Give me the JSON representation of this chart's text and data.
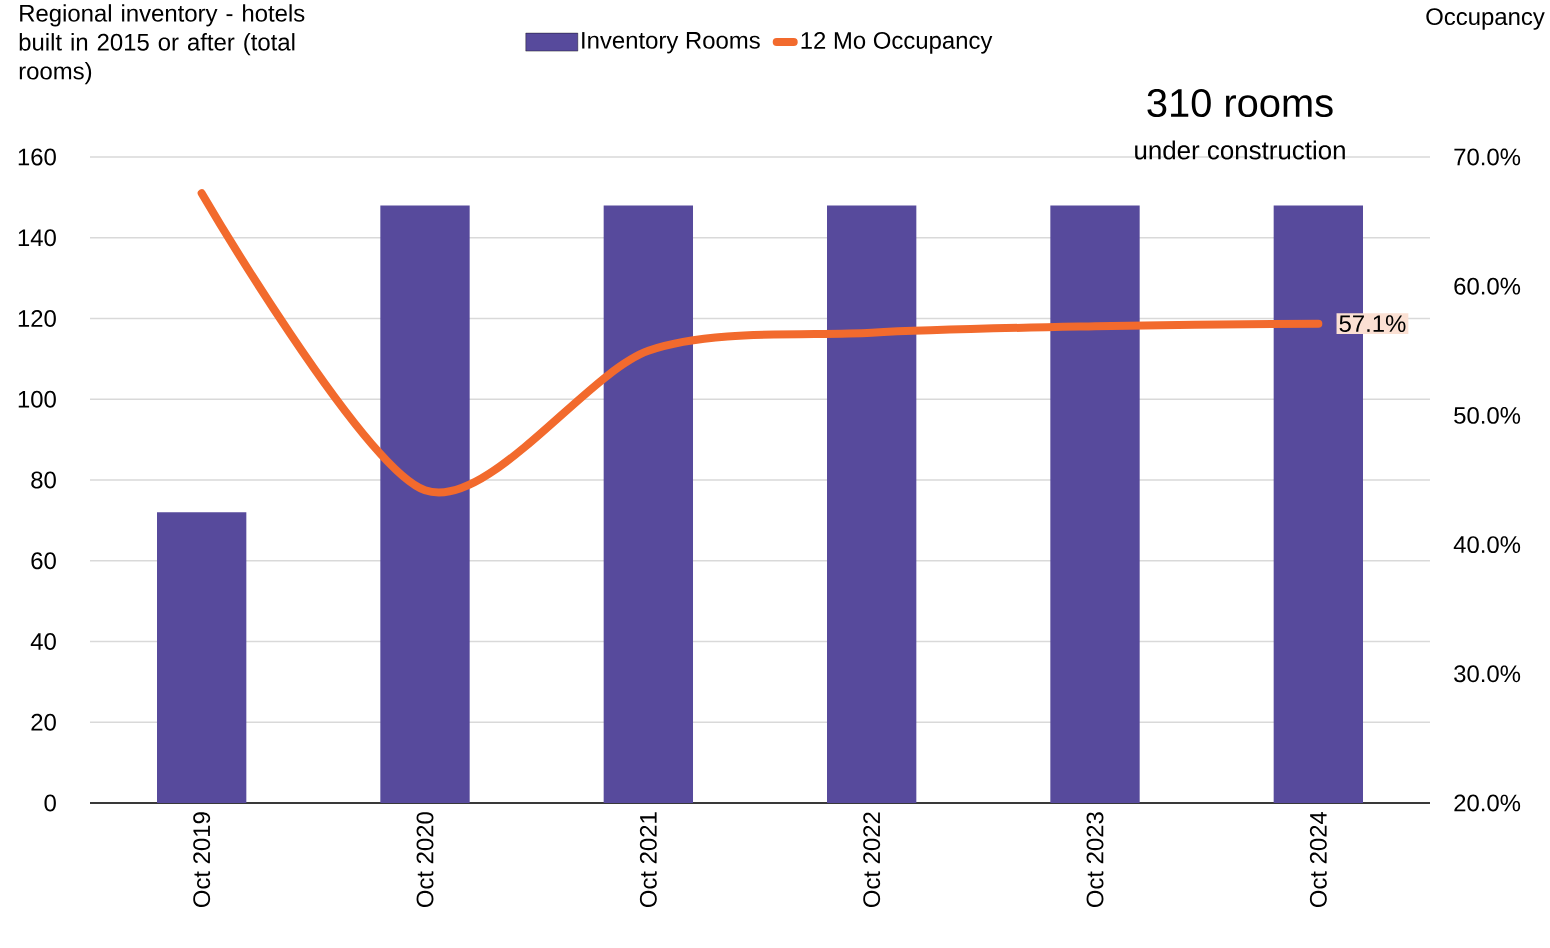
{
  "chart_data": {
    "type": "bar",
    "ylabel": "Regional inventory - hotels built in 2015 or after (total rooms)",
    "y2label": "Occupancy",
    "annotations": [
      "310 rooms",
      "under construction"
    ],
    "categories": [
      "Oct 2019",
      "Oct 2020",
      "Oct 2021",
      "Oct 2022",
      "Oct 2023",
      "Oct 2024"
    ],
    "series": [
      {
        "name": "Inventory Rooms",
        "color": "#574a9c",
        "values": [
          72,
          148,
          148,
          148,
          148,
          148
        ]
      },
      {
        "name": "12 Mo Occupancy",
        "type": "line",
        "axis": "y2",
        "color": "#f26a2d",
        "values": [
          67.2,
          44.2,
          55.0,
          56.4,
          56.9,
          57.1
        ],
        "value_labels": [
          null,
          null,
          null,
          null,
          null,
          "57.1%"
        ]
      }
    ],
    "ylim": [
      0,
      160
    ],
    "yticks": [
      0,
      20,
      40,
      60,
      80,
      100,
      120,
      140,
      160
    ],
    "y2lim": [
      20,
      70
    ],
    "y2ticks": [
      {
        "value": 20,
        "label": "20.0%"
      },
      {
        "value": 30,
        "label": "30.0%"
      },
      {
        "value": 40,
        "label": "40.0%"
      },
      {
        "value": 50,
        "label": "50.0%"
      },
      {
        "value": 60,
        "label": "60.0%"
      },
      {
        "value": 70,
        "label": "70.0%"
      }
    ],
    "grid": "y",
    "legend": "top",
    "marker": "none",
    "line_style": "solid"
  }
}
